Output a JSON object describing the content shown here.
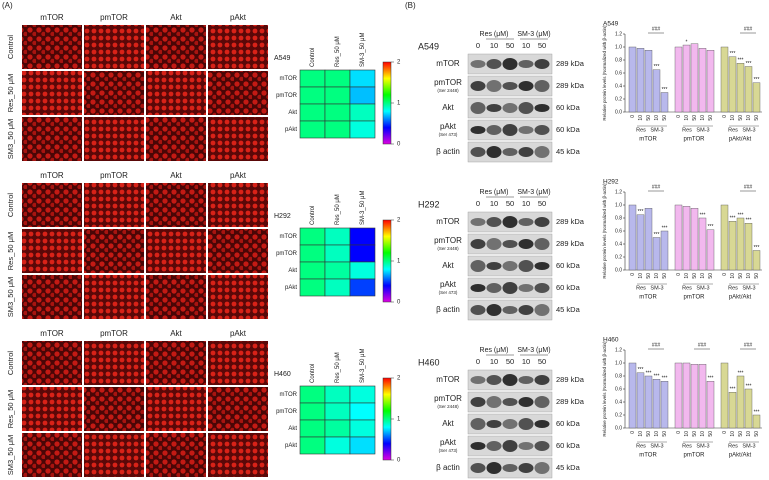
{
  "panel_a": {
    "label": "(A)",
    "colormap": [
      "#e000e0",
      "#0000ff",
      "#00ffff",
      "#00ff00",
      "#ffff00",
      "#ff0000"
    ],
    "zlim": [
      0,
      2
    ],
    "colorbar_ticks": [
      0,
      1,
      2
    ],
    "cell_lines": [
      {
        "stains": [
          "mTOR",
          "pmTOR",
          "Akt",
          "pAkt"
        ],
        "treatments": [
          "Control",
          "Res_50 μM",
          "SM3_50 μM"
        ],
        "heatmap": {
          "name": "A549",
          "columns": [
            "Control",
            "Res_50 μM",
            "SM-3_50 μM"
          ],
          "rows": [
            "mTOR",
            "pmTOR",
            "Akt",
            "pAkt"
          ],
          "values": [
            [
              1.0,
              1.0,
              0.75
            ],
            [
              1.0,
              1.0,
              0.7
            ],
            [
              1.0,
              1.0,
              0.9
            ],
            [
              1.0,
              1.0,
              0.85
            ]
          ]
        }
      },
      {
        "stains": [
          "mTOR",
          "pmTOR",
          "Akt",
          "pAkt"
        ],
        "treatments": [
          "Control",
          "Res_50 μM",
          "SM3_50 μM"
        ],
        "heatmap": {
          "name": "H292",
          "columns": [
            "Control",
            "Res_50 μM",
            "SM-3_50 μM"
          ],
          "rows": [
            "mTOR",
            "pmTOR",
            "Akt",
            "pAkt"
          ],
          "values": [
            [
              1.0,
              0.9,
              0.4
            ],
            [
              1.0,
              0.9,
              0.4
            ],
            [
              1.0,
              0.95,
              0.85
            ],
            [
              1.0,
              0.9,
              0.5
            ]
          ]
        }
      },
      {
        "stains": [
          "mTOR",
          "pmTOR",
          "Akt",
          "pAkt"
        ],
        "treatments": [
          "Control",
          "Res_50 μM",
          "SM3_50 μM"
        ],
        "heatmap": {
          "name": "H460",
          "columns": [
            "Control",
            "Res_50 μM",
            "SM-3_50 μM"
          ],
          "rows": [
            "mTOR",
            "pmTOR",
            "Akt",
            "pAkt"
          ],
          "values": [
            [
              1.0,
              0.9,
              0.85
            ],
            [
              1.0,
              0.9,
              0.8
            ],
            [
              1.0,
              0.95,
              0.85
            ],
            [
              1.0,
              0.85,
              0.75
            ]
          ]
        }
      }
    ]
  },
  "panel_b": {
    "label": "(B)",
    "blots": [
      {
        "cell_line": "A549",
        "headers": [
          "Res (μM)",
          "SM-3 (μM)"
        ],
        "doses": [
          "0",
          "10",
          "50",
          "10",
          "50"
        ],
        "proteins": [
          {
            "name": "mTOR",
            "weight": "289 kDa"
          },
          {
            "name": "pmTOR",
            "site": "(Ser 2448)",
            "weight": "289 kDa"
          },
          {
            "name": "Akt",
            "weight": "60 kDa"
          },
          {
            "name": "pAkt",
            "site": "(Ser 473)",
            "weight": "60 kDa"
          },
          {
            "name": "β actin",
            "weight": "45 kDa"
          }
        ],
        "chart": {
          "type": "bar",
          "title": "A549",
          "ylabel": "Relative protein levels (Normalized with β-actin)",
          "ylim": [
            0,
            1.2
          ],
          "yticks": [
            {
              "value": 0,
              "label": "0.0"
            },
            0.2,
            0.4,
            0.6,
            0.8,
            {
              "value": 1,
              "label": "1.0"
            },
            1.2
          ],
          "x_labels": [
            "0",
            "10",
            "50",
            "10",
            "50"
          ],
          "subgroups": [
            "Res",
            "SM-3"
          ],
          "groups": [
            {
              "name": "mTOR",
              "color": "#b8b8ec",
              "values": [
                1,
                0.98,
                0.95,
                0.65,
                0.3
              ],
              "stars": [
                null,
                null,
                null,
                "***",
                "***"
              ],
              "hash": "###"
            },
            {
              "name": "pmTOR",
              "color": "#f2b8ee",
              "values": [
                1,
                1.03,
                1.05,
                0.98,
                0.95
              ],
              "stars": [
                null,
                "*",
                null,
                null,
                null
              ],
              "hash": null
            },
            {
              "name": "pAkt/Akt",
              "color": "#d8d894",
              "values": [
                1,
                0.85,
                0.75,
                0.7,
                0.45
              ],
              "stars": [
                null,
                "***",
                "***",
                "***",
                "***"
              ],
              "hash": "###"
            }
          ]
        }
      },
      {
        "cell_line": "H292",
        "headers": [
          "Res (μM)",
          "SM-3 (μM)"
        ],
        "doses": [
          "0",
          "10",
          "50",
          "10",
          "50"
        ],
        "proteins": [
          {
            "name": "mTOR",
            "weight": "289 kDa"
          },
          {
            "name": "pmTOR",
            "site": "(Ser 2448)",
            "weight": "289 kDa"
          },
          {
            "name": "Akt",
            "weight": "60 kDa"
          },
          {
            "name": "pAkt",
            "site": "(Ser 473)",
            "weight": "60 kDa"
          },
          {
            "name": "β actin",
            "weight": "45 kDa"
          }
        ],
        "chart": {
          "type": "bar",
          "title": "H292",
          "ylabel": "Relative protein levels (Normalized with β-actin)",
          "ylim": [
            0,
            1.2
          ],
          "yticks": [
            {
              "value": 0,
              "label": "0.0"
            },
            0.2,
            0.4,
            0.6,
            0.8,
            {
              "value": 1,
              "label": "1.0"
            },
            1.2
          ],
          "x_labels": [
            "0",
            "10",
            "50",
            "10",
            "50"
          ],
          "subgroups": [
            "Res",
            "SM-3"
          ],
          "groups": [
            {
              "name": "mTOR",
              "color": "#b8b8ec",
              "values": [
                1,
                0.85,
                0.95,
                0.5,
                0.6
              ],
              "stars": [
                null,
                "***",
                null,
                "***",
                "***"
              ],
              "hash": "###"
            },
            {
              "name": "pmTOR",
              "color": "#f2b8ee",
              "values": [
                1,
                0.98,
                0.95,
                0.8,
                0.62
              ],
              "stars": [
                null,
                null,
                null,
                "***",
                "***"
              ],
              "hash": null
            },
            {
              "name": "pAkt/Akt",
              "color": "#d8d894",
              "values": [
                1,
                0.75,
                0.8,
                0.72,
                0.3
              ],
              "stars": [
                null,
                "***",
                "***",
                "***",
                "***"
              ],
              "hash": "###"
            }
          ]
        }
      },
      {
        "cell_line": "H460",
        "headers": [
          "Res (μM)",
          "SM-3 (μM)"
        ],
        "doses": [
          "0",
          "10",
          "50",
          "10",
          "50"
        ],
        "proteins": [
          {
            "name": "mTOR",
            "weight": "289 kDa"
          },
          {
            "name": "pmTOR",
            "site": "(Ser 2448)",
            "weight": "289 kDa"
          },
          {
            "name": "Akt",
            "weight": "60 kDa"
          },
          {
            "name": "pAkt",
            "site": "(Ser 473)",
            "weight": "60 kDa"
          },
          {
            "name": "β actin",
            "weight": "45 kDa"
          }
        ],
        "chart": {
          "type": "bar",
          "title": "H460",
          "ylabel": "Relative protein levels (Normalized with β-actin)",
          "ylim": [
            0,
            1.2
          ],
          "yticks": [
            {
              "value": 0,
              "label": "0.0"
            },
            0.2,
            0.4,
            0.6,
            0.8,
            {
              "value": 1,
              "label": "1.0"
            },
            1.2
          ],
          "x_labels": [
            "0",
            "10",
            "50",
            "10",
            "50"
          ],
          "subgroups": [
            "Res",
            "SM-3"
          ],
          "groups": [
            {
              "name": "mTOR",
              "color": "#b8b8ec",
              "values": [
                1,
                0.85,
                0.8,
                0.75,
                0.72
              ],
              "stars": [
                null,
                "***",
                "***",
                "***",
                "***"
              ],
              "hash": "###"
            },
            {
              "name": "pmTOR",
              "color": "#f2b8ee",
              "values": [
                1,
                1,
                0.98,
                0.98,
                0.72
              ],
              "stars": [
                null,
                null,
                null,
                null,
                "***"
              ],
              "hash": "###"
            },
            {
              "name": "pAkt/Akt",
              "color": "#d8d894",
              "values": [
                1,
                0.55,
                0.8,
                0.6,
                0.2
              ],
              "stars": [
                null,
                "***",
                "***",
                "***",
                "***"
              ],
              "hash": "###"
            }
          ]
        }
      }
    ]
  }
}
